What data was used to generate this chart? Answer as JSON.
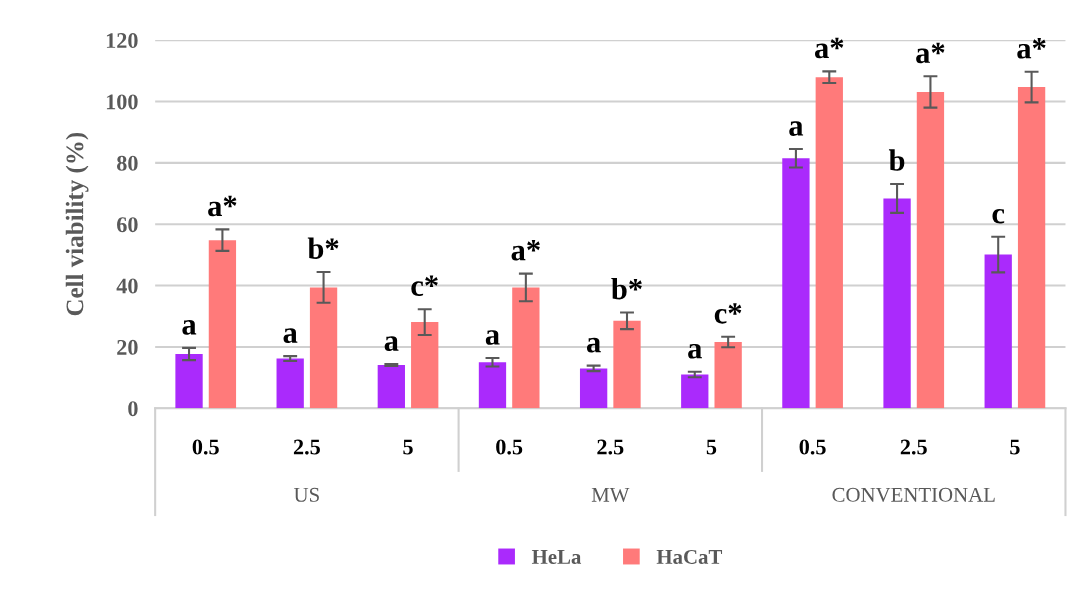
{
  "chart_data": {
    "type": "bar",
    "ylabel": "Cell viability (%)",
    "categories": [
      "0.5",
      "2.5",
      "5",
      "0.5",
      "2.5",
      "5",
      "0.5",
      "2.5",
      "5"
    ],
    "annotations": [
      "US",
      "MW",
      "CONVENTIONAL"
    ],
    "series": [
      {
        "name": "HeLa",
        "color": "#aa2afc",
        "values": [
          17.7,
          16.2,
          14.1,
          15.0,
          13.0,
          11.0,
          81.5,
          68.4,
          50.1
        ],
        "errors": [
          2.0,
          0.8,
          0.3,
          1.4,
          0.9,
          0.9,
          3.0,
          4.7,
          5.8
        ],
        "value_labels": [
          "a",
          "a",
          "a",
          "a",
          "a",
          "a",
          "a",
          "b",
          "c"
        ]
      },
      {
        "name": "HaCaT",
        "color": "#ff7a7a",
        "values": [
          54.8,
          39.4,
          28.1,
          39.4,
          28.5,
          21.6,
          107.9,
          103.1,
          104.7
        ],
        "errors": [
          3.5,
          5.0,
          4.2,
          4.5,
          2.7,
          1.7,
          1.9,
          5.1,
          5.0
        ],
        "value_labels": [
          "a*",
          "b*",
          "c*",
          "a*",
          "b*",
          "c*",
          "a*",
          "a*",
          "a*"
        ]
      }
    ],
    "ylim": [
      0,
      120
    ],
    "yticks": [
      0,
      20,
      40,
      60,
      80,
      100,
      120
    ],
    "grid": "y",
    "legend": "bottom"
  }
}
